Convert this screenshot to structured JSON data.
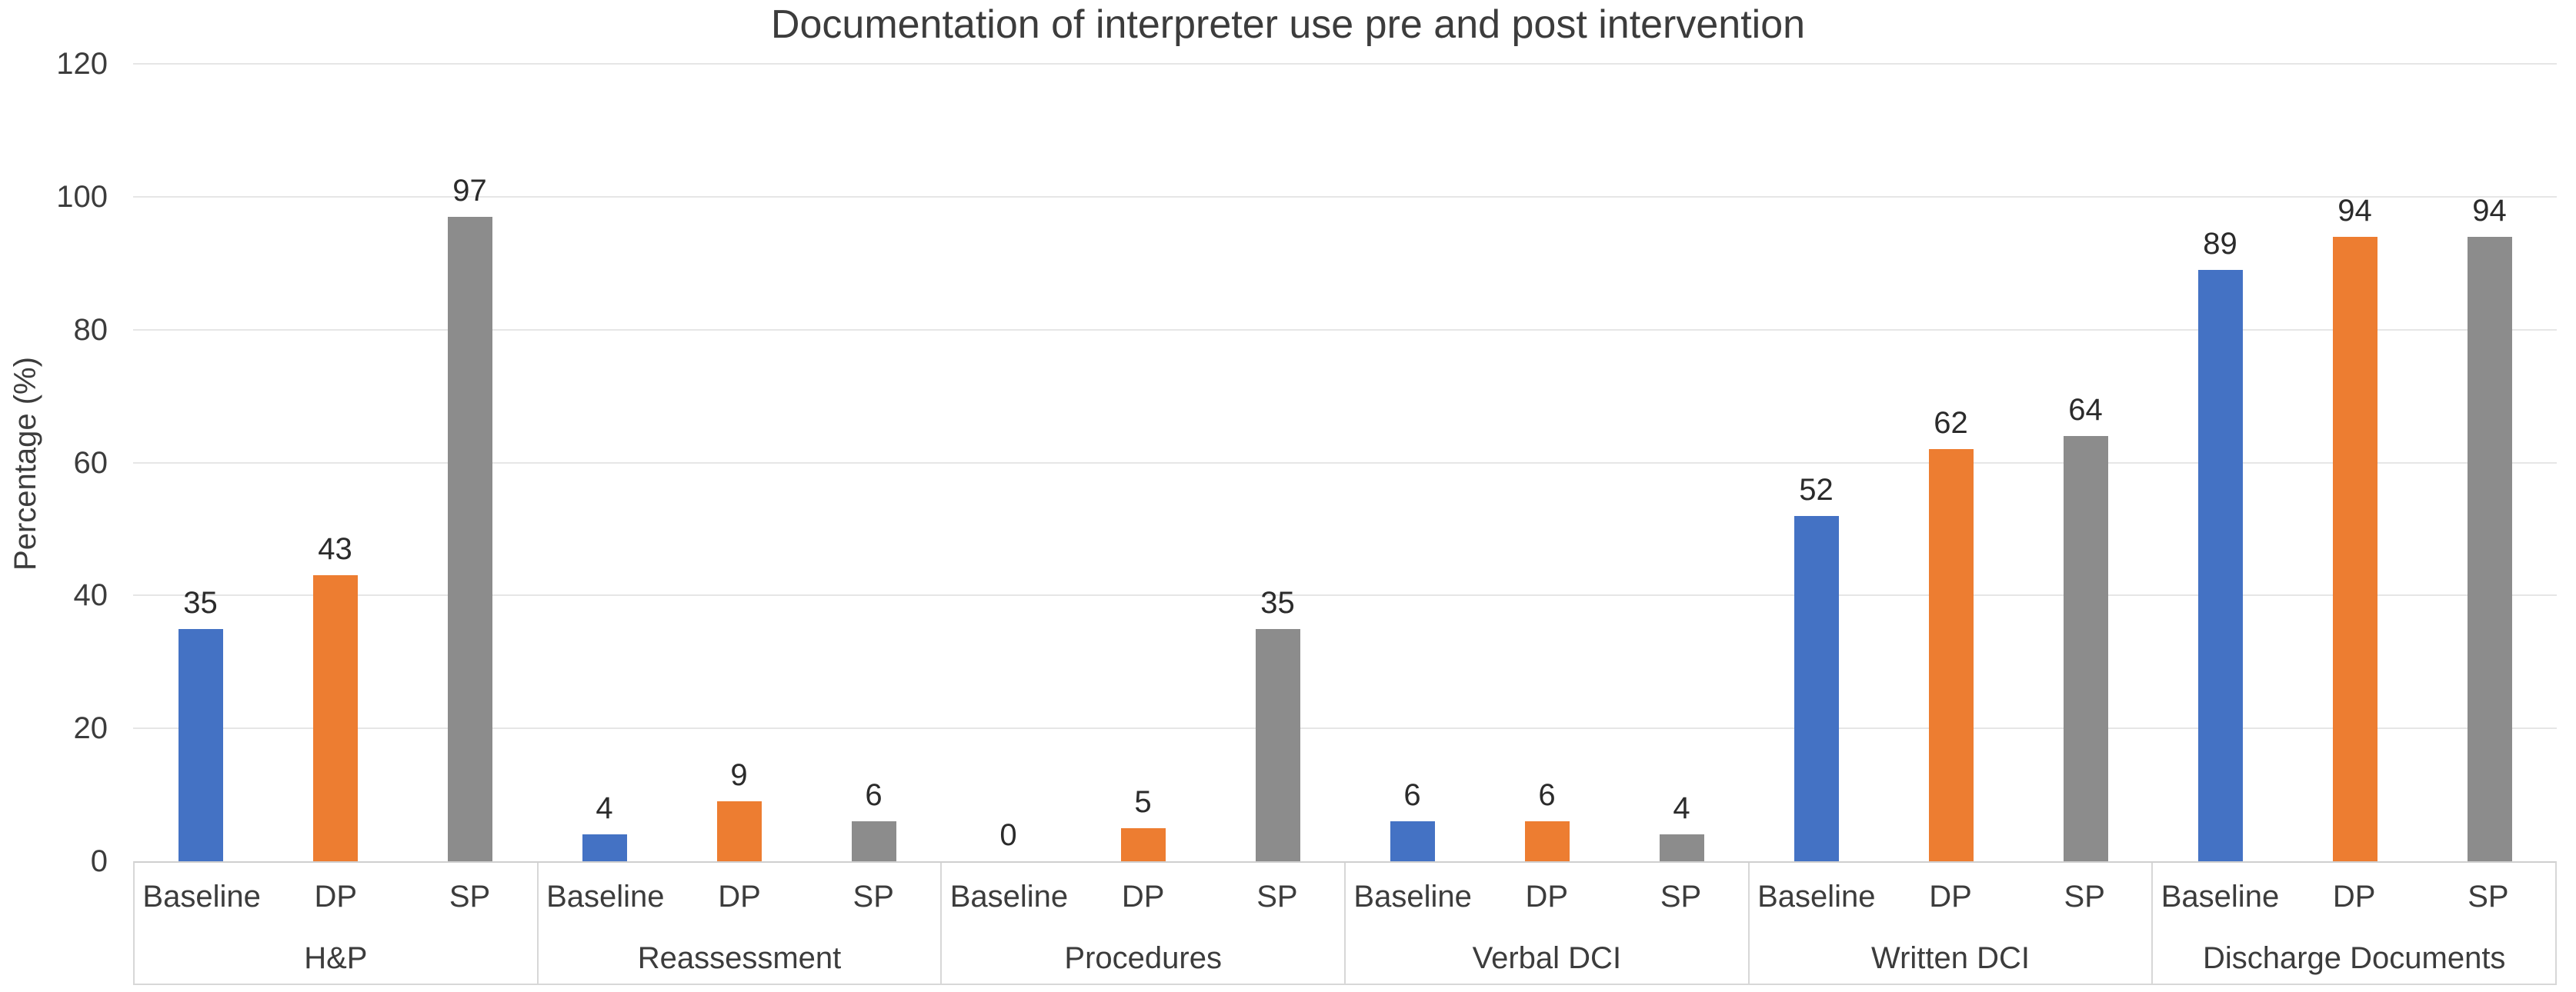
{
  "chart_data": {
    "type": "bar",
    "title": "Documentation of interpreter use pre and post intervention",
    "ylabel": "Percentage (%)",
    "ylim": [
      0,
      120
    ],
    "yticks": [
      0,
      20,
      40,
      60,
      80,
      100,
      120
    ],
    "grid": "horizontal",
    "legend": "none",
    "data_labels": true,
    "categories": [
      "H&P",
      "Reassessment",
      "Procedures",
      "Verbal DCI",
      "Written DCI",
      "Discharge Documents"
    ],
    "series_labels_per_category": [
      "Baseline",
      "DP",
      "SP"
    ],
    "series": [
      {
        "name": "Baseline",
        "color": "#4472C4",
        "values": [
          35,
          4,
          0,
          6,
          52,
          89
        ]
      },
      {
        "name": "DP",
        "color": "#ED7D31",
        "values": [
          43,
          9,
          5,
          6,
          62,
          94
        ]
      },
      {
        "name": "SP",
        "color": "#8C8C8C",
        "values": [
          97,
          6,
          35,
          4,
          64,
          94
        ]
      }
    ]
  }
}
